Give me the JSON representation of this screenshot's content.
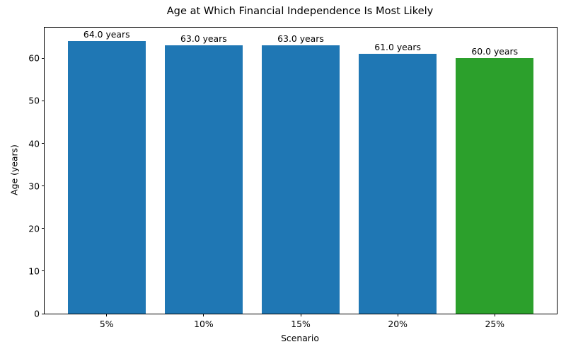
{
  "chart_data": {
    "type": "bar",
    "title": "Age at Which Financial Independence Is Most Likely",
    "xlabel": "Scenario",
    "ylabel": "Age (years)",
    "categories": [
      "5%",
      "10%",
      "15%",
      "20%",
      "25%"
    ],
    "values": [
      64.0,
      63.0,
      63.0,
      61.0,
      60.0
    ],
    "bar_labels": [
      "64.0 years",
      "63.0 years",
      "63.0 years",
      "61.0 years",
      "60.0 years"
    ],
    "bar_colors": [
      "#1f77b4",
      "#1f77b4",
      "#1f77b4",
      "#1f77b4",
      "#2ca02c"
    ],
    "yticks": [
      0,
      10,
      20,
      30,
      40,
      50,
      60
    ],
    "ylim": [
      0,
      67.2
    ],
    "xlim_units": [
      -0.64,
      4.64
    ],
    "bar_width_units": 0.8,
    "grid": false,
    "legend": "none",
    "colors": {
      "bar_blue": "#1f77b4",
      "bar_green": "#2ca02c",
      "axis": "#000000",
      "text": "#000000",
      "background": "#ffffff"
    }
  }
}
